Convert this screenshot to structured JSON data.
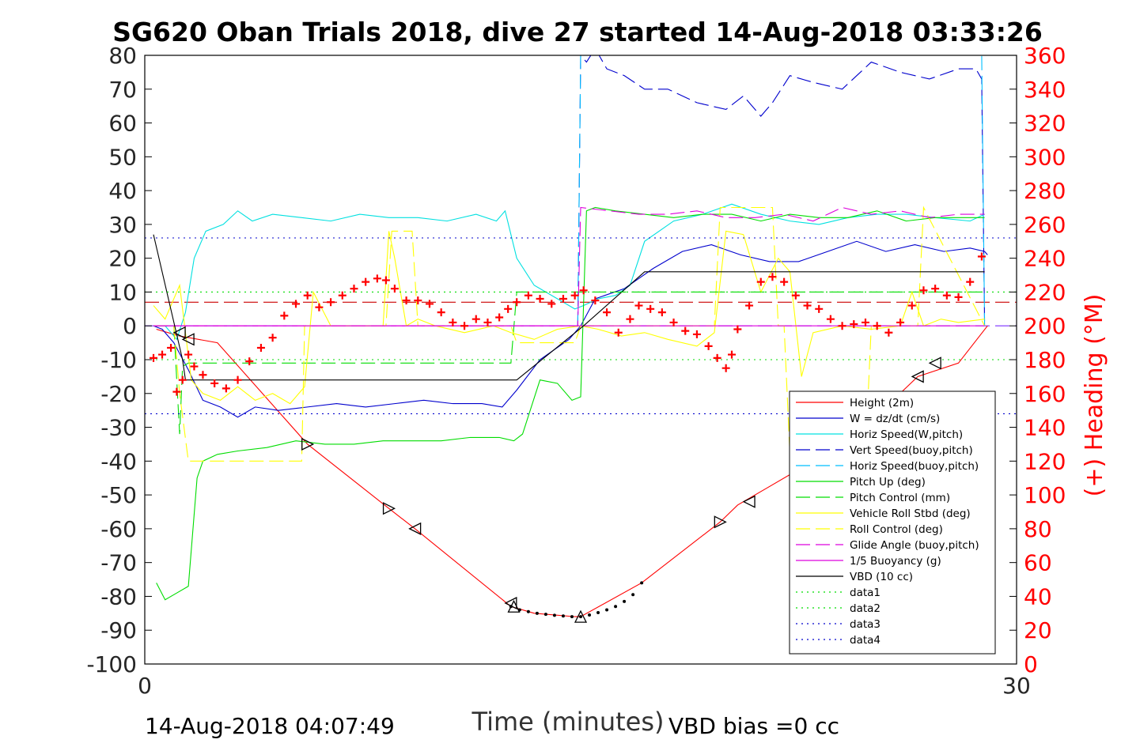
{
  "chart_data": {
    "type": "line",
    "title": "SG620 Oban Trials 2018, dive 27 started 14-Aug-2018 03:33:26",
    "xlabel": "Time (minutes)",
    "ylabel_right": "(+) Heading (°M)",
    "xlim": [
      0,
      30
    ],
    "ylim": [
      -100,
      80
    ],
    "ylim_right": [
      0,
      360
    ],
    "x_ticks": [
      "0",
      "30"
    ],
    "y_ticks": [
      "80",
      "70",
      "60",
      "50",
      "40",
      "30",
      "20",
      "10",
      "0",
      "-10",
      "-20",
      "-30",
      "-40",
      "-50",
      "-60",
      "-70",
      "-80",
      "-90",
      "-100"
    ],
    "y_ticks_right": [
      "360",
      "340",
      "320",
      "300",
      "280",
      "260",
      "240",
      "220",
      "200",
      "180",
      "160",
      "140",
      "120",
      "100",
      "80",
      "60",
      "40",
      "20",
      "0"
    ],
    "grid": false,
    "legend_position": "lower-right",
    "footer_left": "14-Aug-2018 04:07:49",
    "footer_right": "VBD bias =0 cc",
    "colors": {
      "axes": "#000000",
      "right_axis": "#ff0000"
    },
    "series": [
      {
        "name": "Height (2m)",
        "color": "#ff0000",
        "style": "solid",
        "x": [
          0.4,
          1.2,
          2.5,
          5.6,
          8.4,
          9.3,
          12.6,
          13.4,
          14.8,
          15.0,
          17.1,
          19.8,
          20.4,
          21.4,
          22.4,
          23.8,
          26.6,
          28.0,
          29.0
        ],
        "y": [
          -1,
          -3,
          -5,
          -35,
          -54,
          -60,
          -83,
          -85,
          -86,
          -86,
          -76,
          -58,
          -53,
          -48,
          -43,
          -38,
          -15,
          -11,
          0
        ]
      },
      {
        "name": "W = dz/dt (cm/s)",
        "color": "#0000cd",
        "style": "solid",
        "x": [
          0.3,
          0.6,
          1.0,
          1.5,
          2.0,
          2.6,
          3.2,
          3.8,
          4.6,
          5.6,
          6.6,
          7.6,
          8.6,
          9.6,
          10.6,
          11.6,
          12.3,
          12.8,
          13.6,
          14.6,
          15.0,
          15.5,
          16.5,
          17.5,
          18.5,
          19.5,
          20.5,
          21.5,
          22.5,
          23.5,
          24.5,
          25.5,
          26.5,
          27.5,
          28.4,
          28.9,
          29.0
        ],
        "y": [
          0,
          -1,
          -5,
          -13,
          -22,
          -24,
          -27,
          -24,
          -25,
          -24,
          -23,
          -24,
          -23,
          -22,
          -23,
          -23,
          -24,
          -19,
          -10,
          -4,
          0,
          8,
          11,
          17,
          22,
          24,
          21,
          19,
          19,
          22,
          25,
          22,
          24,
          22,
          23,
          22,
          21
        ]
      },
      {
        "name": "Horiz Speed(W,pitch)",
        "color": "#00e0e0",
        "style": "solid",
        "x": [
          0.3,
          0.7,
          1.1,
          1.4,
          1.7,
          2.1,
          2.7,
          3.2,
          3.7,
          4.4,
          5.4,
          6.4,
          7.4,
          8.4,
          9.4,
          10.4,
          11.4,
          12.1,
          12.4,
          12.8,
          13.4,
          14.2,
          14.8,
          15.1,
          15.6,
          16.2,
          16.7,
          17.2,
          18.2,
          19.2,
          20.2,
          21.2,
          22.2,
          23.2,
          24.2,
          25.2,
          26.2,
          27.2,
          28.4,
          28.9
        ],
        "y": [
          0,
          0,
          -4,
          4,
          20,
          28,
          30,
          34,
          31,
          33,
          32,
          31,
          33,
          32,
          32,
          31,
          33,
          31,
          34,
          20,
          12,
          8,
          5,
          6,
          8,
          9,
          12,
          25,
          31,
          33,
          36,
          33,
          31,
          30,
          32,
          33,
          33,
          32,
          31,
          33
        ]
      },
      {
        "name": "Vert Speed(buoy,pitch)",
        "color": "#0000cd",
        "style": "dashed",
        "x": [
          14.9,
          15.0,
          15.2,
          15.5,
          15.9,
          16.5,
          17.2,
          18.0,
          19.0,
          20.0,
          20.6,
          21.2,
          21.6,
          22.2,
          23.0,
          24.0,
          25.0,
          26.0,
          27.0,
          28.0,
          28.6,
          28.8,
          28.9
        ],
        "y": [
          0,
          80,
          78,
          82,
          76,
          74,
          70,
          70,
          66,
          64,
          68,
          62,
          66,
          74,
          72,
          70,
          78,
          75,
          73,
          76,
          76,
          73,
          0
        ]
      },
      {
        "name": "Horiz Speed(buoy,pitch)",
        "color": "#00bfff",
        "style": "dashed",
        "x": [
          14.9,
          15.0,
          15.1,
          15.2,
          28.8,
          28.9
        ],
        "y": [
          0,
          80,
          80,
          80,
          80,
          0
        ]
      },
      {
        "name": "Pitch Up (deg)",
        "color": "#00dd00",
        "style": "solid",
        "x": [
          0.4,
          0.7,
          1.1,
          1.5,
          1.8,
          2.0,
          2.5,
          3.2,
          4.2,
          5.2,
          6.2,
          7.2,
          8.2,
          9.2,
          10.2,
          11.2,
          12.2,
          12.7,
          13.0,
          13.6,
          14.2,
          14.7,
          15.0,
          15.2,
          15.5,
          16.2,
          17.2,
          18.2,
          19.2,
          20.2,
          21.2,
          22.2,
          23.2,
          24.2,
          25.2,
          26.2,
          27.2,
          28.2,
          28.8,
          28.9
        ],
        "y": [
          -76,
          -81,
          -79,
          -77,
          -45,
          -40,
          -38,
          -37,
          -36,
          -34,
          -35,
          -35,
          -34,
          -34,
          -34,
          -33,
          -33,
          -34,
          -32,
          -16,
          -17,
          -22,
          -21,
          34,
          35,
          34,
          33,
          32,
          33,
          33,
          31,
          33,
          32,
          32,
          34,
          31,
          32,
          32,
          32,
          32
        ]
      },
      {
        "name": "Pitch Control (mm)",
        "color": "#00dd00",
        "style": "dashed",
        "x": [
          0.3,
          1.0,
          1.2,
          1.3,
          1.5,
          5.0,
          9.0,
          12.0,
          12.6,
          12.8,
          28.9
        ],
        "y": [
          0,
          0,
          -32,
          -12,
          -11,
          -11,
          -11,
          -11,
          -11,
          10,
          10
        ]
      },
      {
        "name": "Vehicle Roll Stbd (deg)",
        "color": "#ffff00",
        "style": "solid",
        "x": [
          0.3,
          0.7,
          1.2,
          1.6,
          2.0,
          2.6,
          3.2,
          3.8,
          4.4,
          5.0,
          5.5,
          5.8,
          6.4,
          7.4,
          8.2,
          8.4,
          8.6,
          9.0,
          9.4,
          10.0,
          11.0,
          12.0,
          12.6,
          13.4,
          14.2,
          15.0,
          15.6,
          16.4,
          17.2,
          18.0,
          19.0,
          19.6,
          20.0,
          20.6,
          21.2,
          21.8,
          22.2,
          22.6,
          23.0,
          24.0,
          25.0,
          26.0,
          26.4,
          26.8,
          27.4,
          28.0,
          28.9
        ],
        "y": [
          6,
          2,
          12,
          -16,
          -20,
          -22,
          -18,
          -22,
          -20,
          -23,
          -18,
          10,
          0,
          0,
          0,
          28,
          20,
          0,
          2,
          0,
          -2,
          0,
          -2,
          -4,
          -1,
          0,
          -1,
          -3,
          -2,
          -4,
          -6,
          -2,
          28,
          27,
          10,
          20,
          16,
          -15,
          -2,
          0,
          -1,
          0,
          10,
          0,
          2,
          1,
          2
        ]
      },
      {
        "name": "Roll Control (deg)",
        "color": "#ffff00",
        "style": "dashed",
        "x": [
          0.3,
          1.0,
          1.2,
          1.5,
          5.4,
          5.5,
          8.3,
          8.5,
          9.2,
          9.4,
          12.6,
          12.8,
          14.8,
          15.0,
          19.6,
          19.8,
          21.6,
          21.8,
          22.0,
          22.2,
          24.8,
          25.0,
          26.6,
          26.8,
          28.9
        ],
        "y": [
          0,
          0,
          -20,
          -40,
          -40,
          0,
          0,
          28,
          28,
          0,
          0,
          -5,
          -5,
          0,
          0,
          35,
          35,
          0,
          0,
          -38,
          -38,
          0,
          0,
          35,
          0
        ]
      },
      {
        "name": "Glide Angle (buoy,pitch)",
        "color": "#dd00dd",
        "style": "dashed",
        "x": [
          0.3,
          14.9,
          15.0,
          16.0,
          17.0,
          18.0,
          19.0,
          20.0,
          21.0,
          22.0,
          23.0,
          24.0,
          25.0,
          26.0,
          27.0,
          28.0,
          28.8,
          28.9
        ],
        "y": [
          0,
          0,
          35,
          34,
          33,
          33,
          34,
          32,
          32,
          33,
          31,
          35,
          33,
          34,
          32,
          33,
          33,
          33
        ]
      },
      {
        "name": "1/5 Buoyancy (g)",
        "color": "#dd00dd",
        "style": "solid",
        "x": [
          0.3,
          28.9
        ],
        "y": [
          0,
          0
        ]
      },
      {
        "name": "VBD (10 cc)",
        "color": "#000000",
        "style": "solid",
        "x": [
          0.3,
          1.3,
          1.4,
          12.8,
          15.1,
          17.2,
          28.9
        ],
        "y": [
          27,
          -10,
          -16,
          -16,
          0,
          16,
          16
        ]
      },
      {
        "name": "data1",
        "color": "#00dd00",
        "style": "dotted",
        "x": [
          0,
          30
        ],
        "y": [
          10,
          10
        ]
      },
      {
        "name": "data2",
        "color": "#00dd00",
        "style": "dotted",
        "x": [
          0,
          30
        ],
        "y": [
          -10,
          -10
        ]
      },
      {
        "name": "data3",
        "color": "#0000cd",
        "style": "dotted",
        "x": [
          0,
          30
        ],
        "y": [
          26,
          26
        ]
      },
      {
        "name": "data4",
        "color": "#0000cd",
        "style": "dotted",
        "x": [
          0,
          30
        ],
        "y": [
          -26,
          -26
        ]
      }
    ],
    "extra_lines": [
      {
        "color": "#cc0000",
        "style": "dashed",
        "x": [
          0,
          30
        ],
        "y": [
          7,
          7
        ]
      },
      {
        "color": "#7b2fff",
        "style": "dashed",
        "x": [
          0,
          30
        ],
        "y": [
          0,
          0
        ]
      }
    ],
    "heading_points": {
      "marker": "+",
      "color": "#ff0000",
      "axis": "right",
      "x": [
        0.3,
        0.6,
        0.9,
        1.1,
        1.3,
        1.5,
        1.7,
        2.0,
        2.4,
        2.8,
        3.2,
        3.6,
        4.0,
        4.4,
        4.8,
        5.2,
        5.6,
        6.0,
        6.4,
        6.8,
        7.2,
        7.6,
        8.0,
        8.3,
        8.6,
        9.0,
        9.4,
        9.8,
        10.2,
        10.6,
        11.0,
        11.4,
        11.8,
        12.2,
        12.5,
        12.8,
        13.2,
        13.6,
        14.0,
        14.4,
        14.8,
        15.1,
        15.5,
        15.9,
        16.3,
        16.7,
        17.0,
        17.4,
        17.8,
        18.2,
        18.6,
        19.0,
        19.4,
        19.7,
        20.0,
        20.2,
        20.4,
        20.8,
        21.2,
        21.6,
        22.0,
        22.4,
        22.8,
        23.2,
        23.6,
        24.0,
        24.4,
        24.8,
        25.2,
        25.6,
        26.0,
        26.4,
        26.8,
        27.2,
        27.6,
        28.0,
        28.4,
        28.8
      ],
      "y": [
        181,
        183,
        187,
        161,
        168,
        183,
        176,
        171,
        166,
        163,
        168,
        179,
        187,
        193,
        206,
        213,
        218,
        211,
        214,
        218,
        222,
        226,
        228,
        227,
        222,
        215,
        215,
        213,
        208,
        202,
        200,
        204,
        202,
        205,
        210,
        214,
        218,
        216,
        213,
        216,
        218,
        221,
        215,
        208,
        196,
        204,
        212,
        210,
        208,
        202,
        197,
        195,
        188,
        181,
        175,
        183,
        198,
        212,
        226,
        229,
        226,
        218,
        212,
        210,
        204,
        200,
        201,
        202,
        200,
        196,
        202,
        212,
        221,
        222,
        218,
        217,
        226,
        241
      ]
    },
    "triangle_markers": {
      "color": "#000000",
      "x": [
        1.2,
        1.5,
        5.6,
        8.4,
        9.3,
        12.6,
        12.7,
        15.0,
        19.8,
        20.8,
        22.4,
        26.6,
        27.2
      ],
      "y": [
        -2,
        -4,
        -35,
        -54,
        -60,
        -82,
        -83,
        -86,
        -58,
        -52,
        -43,
        -15,
        -11
      ],
      "dir": [
        "left",
        "left",
        "right",
        "right",
        "left",
        "left",
        "up",
        "up",
        "right",
        "left",
        "left",
        "left",
        "left"
      ]
    },
    "bottom_dots": {
      "color": "#000000",
      "x": [
        12.6,
        12.9,
        13.2,
        13.5,
        13.8,
        14.1,
        14.4,
        14.7,
        15.0,
        15.3,
        15.6,
        15.9,
        16.2,
        16.5,
        16.8,
        17.1
      ],
      "y": [
        -83,
        -84,
        -84.5,
        -85,
        -85.3,
        -85.6,
        -85.8,
        -86,
        -86,
        -85.5,
        -84.8,
        -84,
        -83,
        -81.5,
        -79.5,
        -76
      ]
    }
  }
}
